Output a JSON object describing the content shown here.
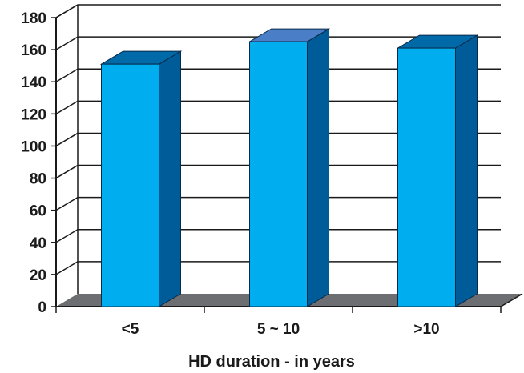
{
  "chart_data": {
    "type": "bar",
    "title": "",
    "xlabel": "HD duration - in years",
    "ylabel": "",
    "categories": [
      "<5",
      "5 ~ 10",
      ">10"
    ],
    "values": [
      151,
      165,
      161
    ],
    "ylim": [
      0,
      180
    ],
    "yticks": [
      "0",
      "20",
      "40",
      "60",
      "80",
      "100",
      "120",
      "140",
      "160",
      "180"
    ],
    "grid": true,
    "style": "3d",
    "colors": {
      "bar_front": "#00aeef",
      "bar_side": "#005b99",
      "bar_top": "#0069a8",
      "bar_top_highlight": "#4a7fc8",
      "floor": "#6d6e71",
      "axis": "#1a1a1a"
    }
  }
}
